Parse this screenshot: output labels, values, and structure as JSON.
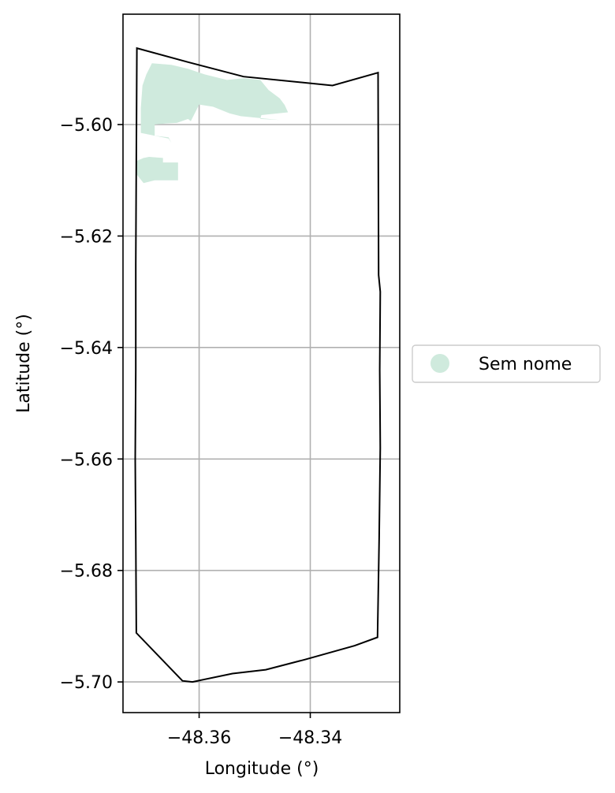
{
  "chart_data": {
    "type": "map",
    "title": "",
    "xlabel": "Longitude (°)",
    "ylabel": "Latitude (°)",
    "xlim": [
      -48.3737,
      -48.3239
    ],
    "ylim": [
      -5.7055,
      -5.5802
    ],
    "xticks": [
      -48.36,
      -48.34
    ],
    "xtick_labels": [
      "−48.36",
      "−48.34"
    ],
    "yticks": [
      -5.6,
      -5.62,
      -5.64,
      -5.66,
      -5.68,
      -5.7
    ],
    "ytick_labels": [
      "−5.60",
      "−5.62",
      "−5.64",
      "−5.66",
      "−5.68",
      "−5.70"
    ],
    "grid": true,
    "legend_position": "right-center",
    "legend": [
      {
        "label": "Sem nome",
        "color": "#cfeadd"
      }
    ],
    "boundary": {
      "stroke": "#000000",
      "coordinates": [
        [
          -48.3712,
          -5.5863
        ],
        [
          -48.362,
          -5.5888
        ],
        [
          -48.352,
          -5.5914
        ],
        [
          -48.336,
          -5.593
        ],
        [
          -48.3278,
          -5.5907
        ],
        [
          -48.3277,
          -5.627
        ],
        [
          -48.3274,
          -5.63
        ],
        [
          -48.3275,
          -5.644
        ],
        [
          -48.3274,
          -5.658
        ],
        [
          -48.3276,
          -5.674
        ],
        [
          -48.3279,
          -5.692
        ],
        [
          -48.332,
          -5.6935
        ],
        [
          -48.341,
          -5.696
        ],
        [
          -48.348,
          -5.6978
        ],
        [
          -48.354,
          -5.6985
        ],
        [
          -48.3612,
          -5.7
        ],
        [
          -48.363,
          -5.6998
        ],
        [
          -48.3713,
          -5.6912
        ],
        [
          -48.3714,
          -5.674
        ],
        [
          -48.3715,
          -5.66
        ],
        [
          -48.3714,
          -5.644
        ],
        [
          -48.3714,
          -5.625
        ],
        [
          -48.3712,
          -5.5863
        ]
      ]
    },
    "areas": [
      {
        "name": "Sem nome",
        "color": "#cfeadd",
        "coordinates": [
          [
            -48.3685,
            -5.589
          ],
          [
            -48.365,
            -5.5893
          ],
          [
            -48.362,
            -5.59
          ],
          [
            -48.359,
            -5.591
          ],
          [
            -48.355,
            -5.592
          ],
          [
            -48.352,
            -5.5917
          ],
          [
            -48.349,
            -5.592
          ],
          [
            -48.3475,
            -5.5938
          ],
          [
            -48.3455,
            -5.5953
          ],
          [
            -48.3446,
            -5.5965
          ],
          [
            -48.344,
            -5.5978
          ],
          [
            -48.3488,
            -5.5983
          ],
          [
            -48.349,
            -5.599
          ],
          [
            -48.3455,
            -5.5992
          ],
          [
            -48.3525,
            -5.5985
          ],
          [
            -48.3545,
            -5.598
          ],
          [
            -48.3575,
            -5.5968
          ],
          [
            -48.36,
            -5.5964
          ],
          [
            -48.3615,
            -5.5994
          ],
          [
            -48.362,
            -5.599
          ],
          [
            -48.364,
            -5.5997
          ],
          [
            -48.366,
            -5.5998
          ],
          [
            -48.368,
            -5.6
          ],
          [
            -48.368,
            -5.602
          ],
          [
            -48.3655,
            -5.6023
          ],
          [
            -48.365,
            -5.6033
          ],
          [
            -48.3655,
            -5.6025
          ],
          [
            -48.3705,
            -5.6015
          ],
          [
            -48.3705,
            -5.597
          ],
          [
            -48.3702,
            -5.593
          ],
          [
            -48.3695,
            -5.591
          ],
          [
            -48.3685,
            -5.589
          ]
        ]
      },
      {
        "name": "Sem nome",
        "color": "#cfeadd",
        "coordinates": [
          [
            -48.369,
            -5.6058
          ],
          [
            -48.3665,
            -5.606
          ],
          [
            -48.3665,
            -5.6068
          ],
          [
            -48.3638,
            -5.6068
          ],
          [
            -48.3638,
            -5.61
          ],
          [
            -48.368,
            -5.61
          ],
          [
            -48.37,
            -5.6105
          ],
          [
            -48.3712,
            -5.609
          ],
          [
            -48.3712,
            -5.6065
          ],
          [
            -48.37,
            -5.606
          ],
          [
            -48.369,
            -5.6058
          ]
        ]
      }
    ]
  }
}
